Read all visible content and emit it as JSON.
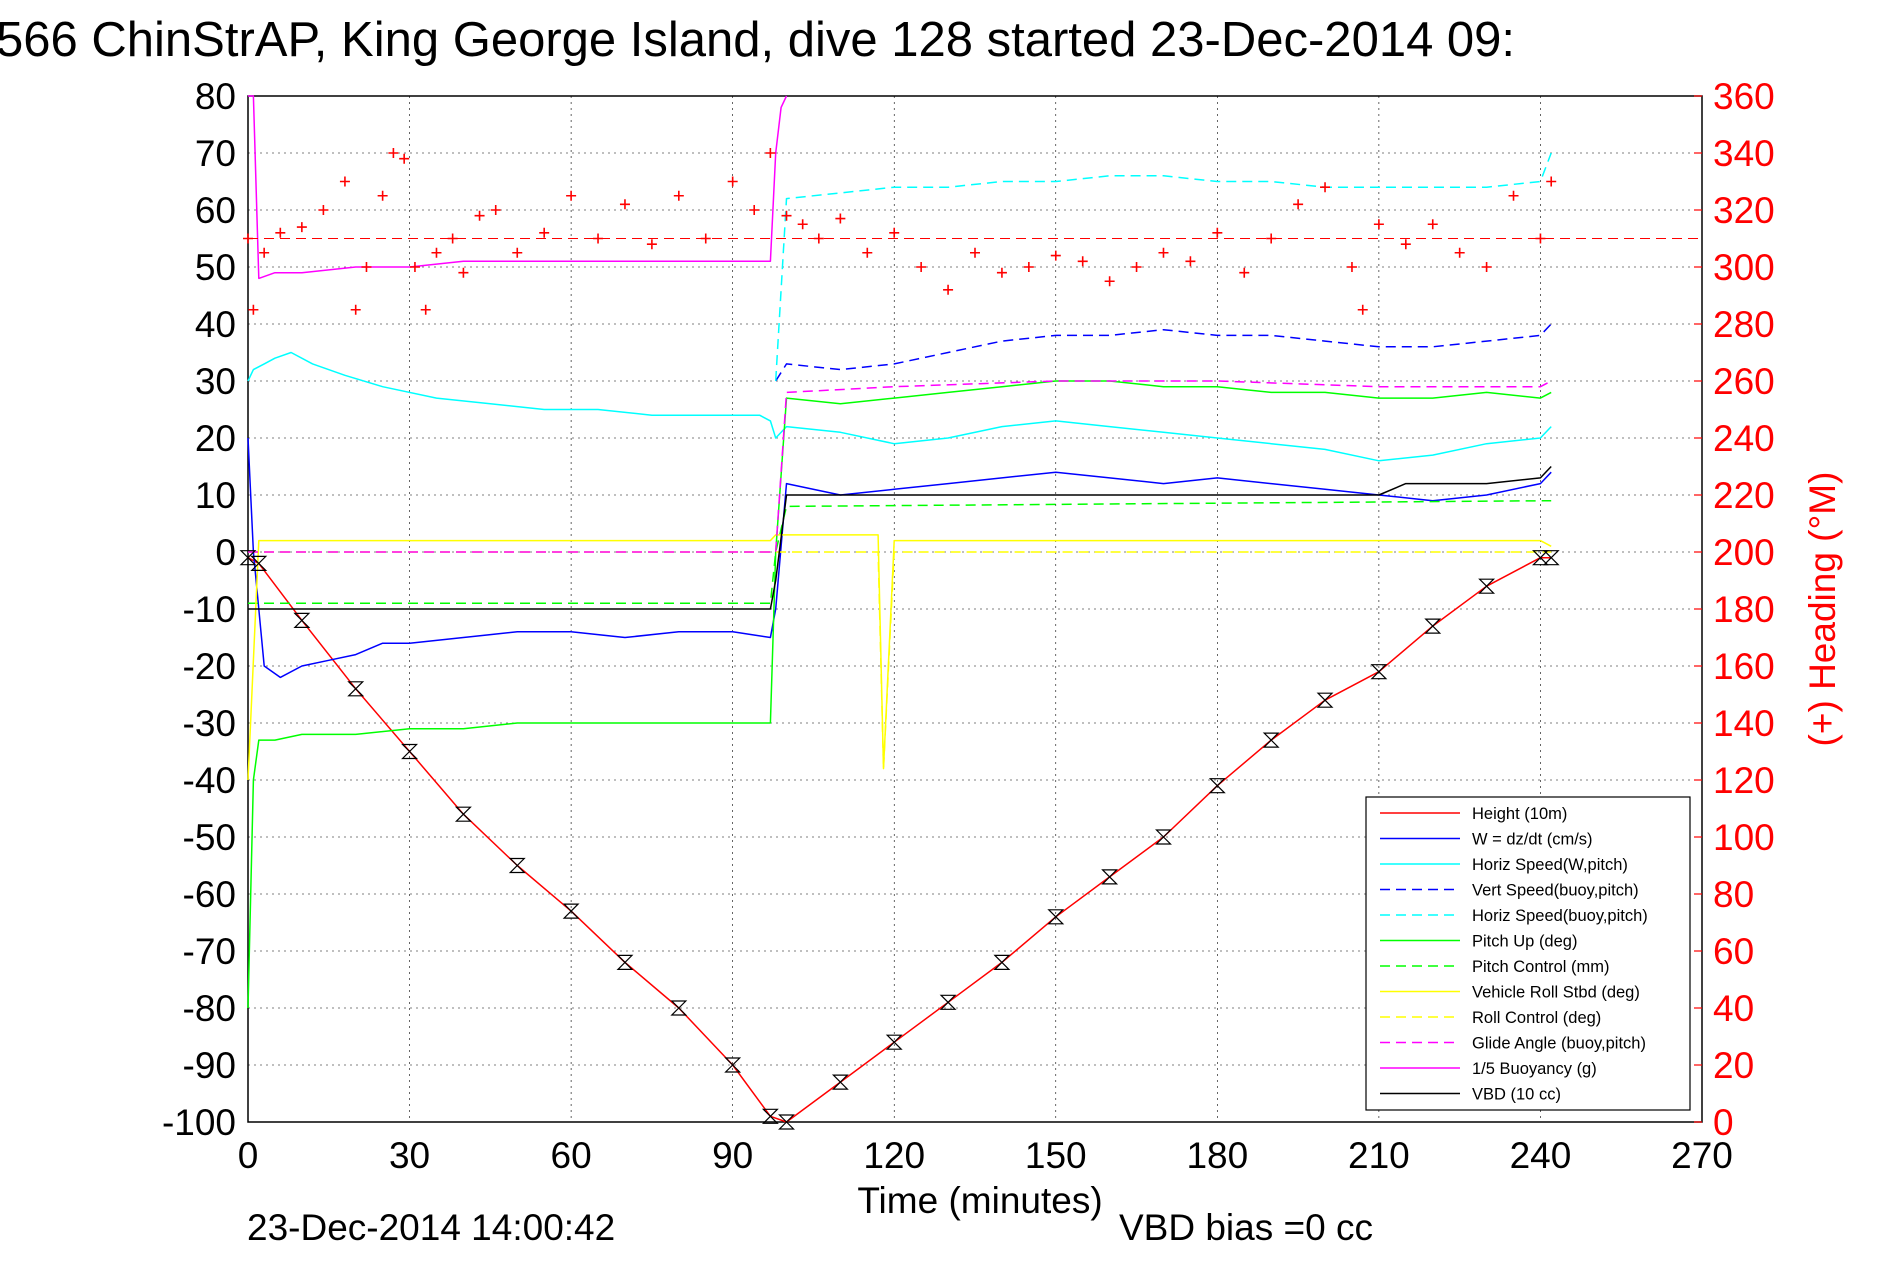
{
  "title": "566 ChinStrAP, King George Island, dive 128 started 23-Dec-2014 09:",
  "footer": {
    "timestamp": "23-Dec-2014 14:00:42",
    "vbd_bias": "VBD bias =0 cc"
  },
  "colors": {
    "height": "#ff0000",
    "w": "#0000ff",
    "horiz": "#00ffff",
    "pitch": "#00ff00",
    "roll": "#ffff00",
    "glide": "#ff00ff",
    "vbd": "#000000",
    "heading": "#ff0000"
  },
  "chart_data": {
    "type": "line",
    "title": "566 ChinStrAP, King George Island, dive 128 started 23-Dec-2014 09:",
    "xlabel": "Time (minutes)",
    "ylabel_right": "(+) Heading (°M)",
    "xlim": [
      0,
      270
    ],
    "ylim": [
      -100,
      80
    ],
    "ylim_right": [
      0,
      360
    ],
    "xticks": [
      "0",
      "30",
      "60",
      "90",
      "120",
      "150",
      "180",
      "210",
      "240",
      "270"
    ],
    "yticks": [
      "80",
      "70",
      "60",
      "50",
      "40",
      "30",
      "20",
      "10",
      "0",
      "-10",
      "-20",
      "-30",
      "-40",
      "-50",
      "-60",
      "-70",
      "-80",
      "-90",
      "-100"
    ],
    "yticks_right": [
      "360",
      "340",
      "320",
      "300",
      "280",
      "260",
      "240",
      "220",
      "200",
      "180",
      "160",
      "140",
      "120",
      "100",
      "80",
      "60",
      "40",
      "20",
      "0"
    ],
    "legend_position": "bottom-right",
    "series": [
      {
        "name": "Height (10m)",
        "color": "#ff0000",
        "style": "solid",
        "x": [
          0,
          2,
          10,
          20,
          30,
          40,
          50,
          60,
          70,
          80,
          90,
          97,
          100,
          110,
          120,
          130,
          140,
          150,
          160,
          170,
          180,
          190,
          200,
          210,
          220,
          230,
          240,
          242
        ],
        "y": [
          -1,
          -2,
          -12,
          -24,
          -35,
          -46,
          -55,
          -63,
          -72,
          -80,
          -90,
          -99,
          -100,
          -93,
          -86,
          -79,
          -72,
          -64,
          -57,
          -50,
          -41,
          -33,
          -26,
          -21,
          -13,
          -6,
          -1,
          -1
        ]
      },
      {
        "name": "W = dz/dt (cm/s)",
        "color": "#0000ff",
        "style": "solid",
        "x": [
          0,
          1,
          3,
          6,
          10,
          15,
          20,
          25,
          30,
          40,
          50,
          60,
          70,
          80,
          90,
          97,
          98,
          100,
          110,
          120,
          130,
          140,
          150,
          160,
          170,
          180,
          190,
          200,
          210,
          220,
          230,
          240,
          242
        ],
        "y": [
          20,
          0,
          -20,
          -22,
          -20,
          -19,
          -18,
          -16,
          -16,
          -15,
          -14,
          -14,
          -15,
          -14,
          -14,
          -15,
          -10,
          12,
          10,
          11,
          12,
          13,
          14,
          13,
          12,
          13,
          12,
          11,
          10,
          9,
          10,
          12,
          14
        ]
      },
      {
        "name": "Horiz Speed(W,pitch)",
        "color": "#00ffff",
        "style": "solid",
        "x": [
          0,
          1,
          3,
          5,
          8,
          12,
          18,
          25,
          35,
          45,
          55,
          65,
          75,
          85,
          95,
          97,
          98,
          100,
          110,
          120,
          130,
          140,
          150,
          160,
          170,
          180,
          190,
          200,
          210,
          220,
          230,
          240,
          242
        ],
        "y": [
          30,
          32,
          33,
          34,
          35,
          33,
          31,
          29,
          27,
          26,
          25,
          25,
          24,
          24,
          24,
          23,
          20,
          22,
          21,
          19,
          20,
          22,
          23,
          22,
          21,
          20,
          19,
          18,
          16,
          17,
          19,
          20,
          22
        ]
      },
      {
        "name": "Vert Speed(buoy,pitch)",
        "color": "#0000ff",
        "style": "dashed",
        "x": [
          98,
          100,
          110,
          120,
          130,
          140,
          150,
          160,
          170,
          180,
          190,
          200,
          210,
          220,
          230,
          240,
          242
        ],
        "y": [
          30,
          33,
          32,
          33,
          35,
          37,
          38,
          38,
          39,
          38,
          38,
          37,
          36,
          36,
          37,
          38,
          40
        ]
      },
      {
        "name": "Horiz Speed(buoy,pitch)",
        "color": "#00ffff",
        "style": "dashed",
        "x": [
          98,
          100,
          110,
          120,
          130,
          140,
          150,
          160,
          170,
          180,
          190,
          200,
          210,
          220,
          230,
          240,
          242
        ],
        "y": [
          30,
          62,
          63,
          64,
          64,
          65,
          65,
          66,
          66,
          65,
          65,
          64,
          64,
          64,
          64,
          65,
          70
        ]
      },
      {
        "name": "Pitch Up (deg)",
        "color": "#00ff00",
        "style": "solid",
        "x": [
          0,
          1,
          2,
          5,
          10,
          20,
          30,
          40,
          50,
          60,
          70,
          80,
          90,
          97,
          98,
          100,
          110,
          120,
          130,
          140,
          150,
          160,
          170,
          180,
          190,
          200,
          210,
          220,
          230,
          240,
          242
        ],
        "y": [
          -80,
          -40,
          -33,
          -33,
          -32,
          -32,
          -31,
          -31,
          -30,
          -30,
          -30,
          -30,
          -30,
          -30,
          0,
          27,
          26,
          27,
          28,
          29,
          30,
          30,
          29,
          29,
          28,
          28,
          27,
          27,
          28,
          27,
          28
        ]
      },
      {
        "name": "Pitch Control (mm)",
        "color": "#00ff00",
        "style": "dashed",
        "x": [
          0,
          2,
          97,
          98,
          100,
          242
        ],
        "y": [
          -9,
          -9,
          -9,
          0,
          8,
          9
        ]
      },
      {
        "name": "Vehicle Roll Stbd (deg)",
        "color": "#ffff00",
        "style": "solid",
        "x": [
          0,
          2,
          5,
          10,
          20,
          30,
          40,
          50,
          60,
          70,
          80,
          90,
          97,
          98,
          100,
          110,
          117,
          118,
          120,
          130,
          140,
          150,
          160,
          170,
          180,
          190,
          200,
          210,
          220,
          230,
          240,
          242
        ],
        "y": [
          -40,
          2,
          2,
          2,
          2,
          2,
          2,
          2,
          2,
          2,
          2,
          2,
          2,
          3,
          3,
          3,
          3,
          -38,
          2,
          2,
          2,
          2,
          2,
          2,
          2,
          2,
          2,
          2,
          2,
          2,
          2,
          1
        ]
      },
      {
        "name": "Roll Control (deg)",
        "color": "#ffff00",
        "style": "dashed",
        "x": [
          0,
          100,
          117,
          118,
          120,
          242
        ],
        "y": [
          0,
          0,
          0,
          -38,
          0,
          0
        ]
      },
      {
        "name": "Glide Angle (buoy,pitch)",
        "color": "#ff00ff",
        "style": "dashed",
        "x": [
          0,
          98,
          100,
          120,
          150,
          180,
          210,
          240,
          242
        ],
        "y": [
          0,
          0,
          28,
          29,
          30,
          30,
          29,
          29,
          30
        ]
      },
      {
        "name": "1/5 Buoyancy (g)",
        "color": "#ff00ff",
        "style": "solid",
        "x": [
          0,
          1,
          2,
          5,
          10,
          20,
          30,
          40,
          50,
          60,
          70,
          80,
          90,
          97,
          98,
          99,
          100
        ],
        "y": [
          80,
          80,
          48,
          49,
          49,
          50,
          50,
          51,
          51,
          51,
          51,
          51,
          51,
          51,
          70,
          78,
          80
        ]
      },
      {
        "name": "VBD (10 cc)",
        "color": "#000000",
        "style": "solid",
        "x": [
          0,
          2,
          97,
          98,
          100,
          110,
          120,
          130,
          140,
          150,
          160,
          170,
          180,
          190,
          200,
          210,
          215,
          220,
          230,
          240,
          242
        ],
        "y": [
          -10,
          -10,
          -10,
          -5,
          10,
          10,
          10,
          10,
          10,
          10,
          10,
          10,
          10,
          10,
          10,
          10,
          12,
          12,
          12,
          13,
          15
        ]
      },
      {
        "name": "(+) Heading (°M)",
        "color": "#ff0000",
        "style": "markers-plus",
        "axis": "right",
        "x": [
          0,
          1,
          3,
          6,
          10,
          14,
          18,
          20,
          22,
          25,
          27,
          29,
          31,
          33,
          35,
          38,
          40,
          43,
          46,
          50,
          55,
          60,
          65,
          70,
          75,
          80,
          85,
          90,
          94,
          97,
          100,
          103,
          106,
          110,
          115,
          120,
          125,
          130,
          135,
          140,
          145,
          150,
          155,
          160,
          165,
          170,
          175,
          180,
          185,
          190,
          195,
          200,
          205,
          207,
          210,
          215,
          220,
          225,
          230,
          235,
          240,
          242
        ],
        "y": [
          310,
          285,
          305,
          312,
          314,
          320,
          330,
          285,
          300,
          325,
          340,
          338,
          300,
          285,
          305,
          310,
          298,
          318,
          320,
          305,
          312,
          325,
          310,
          322,
          308,
          325,
          310,
          330,
          320,
          340,
          318,
          315,
          310,
          317,
          305,
          312,
          300,
          292,
          305,
          298,
          300,
          304,
          302,
          295,
          300,
          305,
          302,
          312,
          298,
          310,
          322,
          328,
          300,
          285,
          315,
          308,
          315,
          305,
          300,
          325,
          310,
          330
        ]
      }
    ]
  }
}
